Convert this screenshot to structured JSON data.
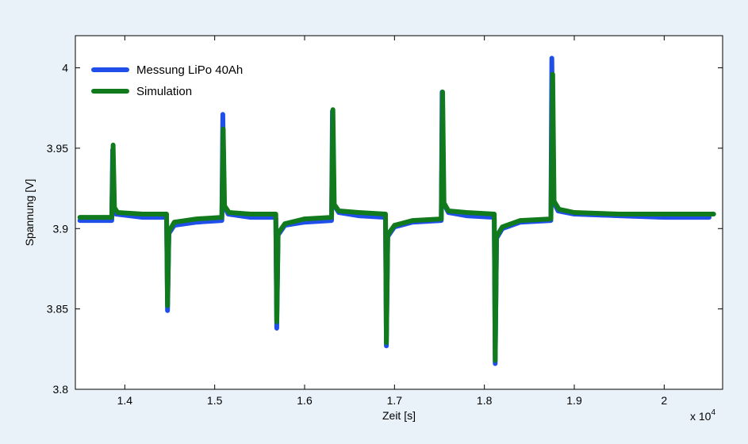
{
  "chart_data": {
    "type": "line",
    "xlabel": "Zeit [s]",
    "ylabel": "Spannung [V]",
    "x_multiplier": "x 10",
    "x_multiplier_exp": "4",
    "xlim": [
      1.345,
      2.065
    ],
    "ylim": [
      3.8,
      4.02
    ],
    "x_ticks": [
      1.4,
      1.5,
      1.6,
      1.7,
      1.8,
      1.9,
      2.0
    ],
    "x_tick_labels": [
      "1.4",
      "1.5",
      "1.6",
      "1.7",
      "1.8",
      "1.9",
      "2"
    ],
    "y_ticks": [
      3.8,
      3.85,
      3.9,
      3.95,
      4.0
    ],
    "y_tick_labels": [
      "3.8",
      "3.85",
      "3.9",
      "3.95",
      "4"
    ],
    "legend_position": "top-left",
    "grid": false,
    "series": [
      {
        "name": "Messung LiPo 40Ah",
        "color": "#1f4fe8",
        "points": [
          [
            1.35,
            3.905
          ],
          [
            1.3855,
            3.905
          ],
          [
            1.3865,
            3.949
          ],
          [
            1.387,
            3.914
          ],
          [
            1.39,
            3.909
          ],
          [
            1.42,
            3.907
          ],
          [
            1.4465,
            3.907
          ],
          [
            1.4475,
            3.849
          ],
          [
            1.449,
            3.897
          ],
          [
            1.455,
            3.902
          ],
          [
            1.48,
            3.904
          ],
          [
            1.508,
            3.905
          ],
          [
            1.509,
            3.971
          ],
          [
            1.5105,
            3.914
          ],
          [
            1.515,
            3.909
          ],
          [
            1.54,
            3.907
          ],
          [
            1.568,
            3.907
          ],
          [
            1.569,
            3.838
          ],
          [
            1.5705,
            3.896
          ],
          [
            1.578,
            3.902
          ],
          [
            1.6,
            3.904
          ],
          [
            1.63,
            3.905
          ],
          [
            1.631,
            3.973
          ],
          [
            1.6325,
            3.915
          ],
          [
            1.638,
            3.91
          ],
          [
            1.66,
            3.908
          ],
          [
            1.69,
            3.907
          ],
          [
            1.691,
            3.827
          ],
          [
            1.6925,
            3.895
          ],
          [
            1.7,
            3.901
          ],
          [
            1.72,
            3.904
          ],
          [
            1.752,
            3.905
          ],
          [
            1.753,
            3.985
          ],
          [
            1.7545,
            3.916
          ],
          [
            1.76,
            3.91
          ],
          [
            1.78,
            3.908
          ],
          [
            1.811,
            3.907
          ],
          [
            1.812,
            3.816
          ],
          [
            1.8135,
            3.894
          ],
          [
            1.82,
            3.9
          ],
          [
            1.84,
            3.904
          ],
          [
            1.874,
            3.905
          ],
          [
            1.875,
            4.006
          ],
          [
            1.8765,
            3.917
          ],
          [
            1.882,
            3.911
          ],
          [
            1.9,
            3.909
          ],
          [
            1.95,
            3.908
          ],
          [
            2.0,
            3.907
          ],
          [
            2.05,
            3.907
          ]
        ]
      },
      {
        "name": "Simulation",
        "color": "#117a1d",
        "points": [
          [
            1.35,
            3.907
          ],
          [
            1.3855,
            3.907
          ],
          [
            1.387,
            3.952
          ],
          [
            1.3885,
            3.913
          ],
          [
            1.392,
            3.91
          ],
          [
            1.42,
            3.909
          ],
          [
            1.4465,
            3.909
          ],
          [
            1.4475,
            3.852
          ],
          [
            1.449,
            3.898
          ],
          [
            1.455,
            3.904
          ],
          [
            1.48,
            3.906
          ],
          [
            1.508,
            3.907
          ],
          [
            1.5095,
            3.962
          ],
          [
            1.511,
            3.914
          ],
          [
            1.516,
            3.91
          ],
          [
            1.54,
            3.909
          ],
          [
            1.568,
            3.909
          ],
          [
            1.569,
            3.842
          ],
          [
            1.5705,
            3.897
          ],
          [
            1.578,
            3.903
          ],
          [
            1.6,
            3.906
          ],
          [
            1.63,
            3.907
          ],
          [
            1.6315,
            3.974
          ],
          [
            1.633,
            3.915
          ],
          [
            1.638,
            3.911
          ],
          [
            1.66,
            3.91
          ],
          [
            1.69,
            3.909
          ],
          [
            1.691,
            3.829
          ],
          [
            1.6925,
            3.896
          ],
          [
            1.7,
            3.902
          ],
          [
            1.72,
            3.905
          ],
          [
            1.752,
            3.906
          ],
          [
            1.7535,
            3.985
          ],
          [
            1.755,
            3.916
          ],
          [
            1.76,
            3.911
          ],
          [
            1.78,
            3.91
          ],
          [
            1.811,
            3.909
          ],
          [
            1.812,
            3.818
          ],
          [
            1.8135,
            3.895
          ],
          [
            1.82,
            3.901
          ],
          [
            1.84,
            3.905
          ],
          [
            1.874,
            3.906
          ],
          [
            1.876,
            3.996
          ],
          [
            1.8775,
            3.917
          ],
          [
            1.883,
            3.912
          ],
          [
            1.9,
            3.91
          ],
          [
            1.95,
            3.909
          ],
          [
            2.0,
            3.909
          ],
          [
            2.055,
            3.909
          ]
        ]
      }
    ]
  }
}
